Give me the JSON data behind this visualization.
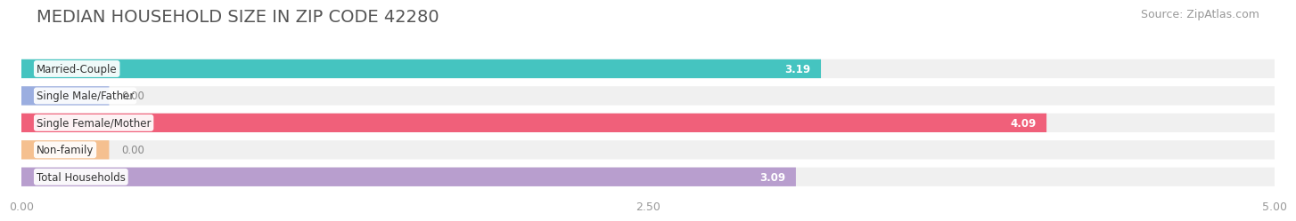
{
  "title": "MEDIAN HOUSEHOLD SIZE IN ZIP CODE 42280",
  "source": "Source: ZipAtlas.com",
  "categories": [
    "Married-Couple",
    "Single Male/Father",
    "Single Female/Mother",
    "Non-family",
    "Total Households"
  ],
  "values": [
    3.19,
    0.0,
    4.09,
    0.0,
    3.09
  ],
  "bar_colors": [
    "#45c4c0",
    "#9baee0",
    "#f0607a",
    "#f5c090",
    "#b89ece"
  ],
  "xlim": [
    0,
    5.0
  ],
  "xticks": [
    0.0,
    2.5,
    5.0
  ],
  "xtick_labels": [
    "0.00",
    "2.50",
    "5.00"
  ],
  "title_fontsize": 14,
  "source_fontsize": 9,
  "bar_height": 0.7,
  "background_color": "#ffffff",
  "bar_background_color": "#f0f0f0",
  "value_label_bg_colors": [
    "#45c4c0",
    "#9baee0",
    "#f0607a",
    "#f5c090",
    "#b89ece"
  ]
}
